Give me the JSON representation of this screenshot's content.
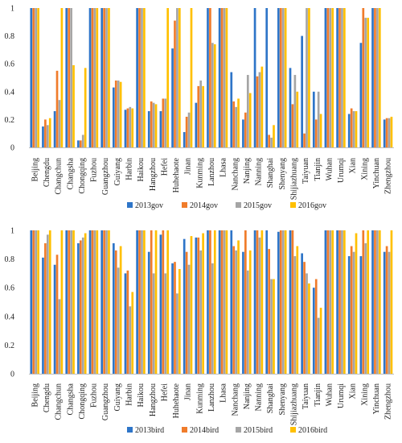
{
  "chart_data": [
    {
      "type": "bar",
      "ylim": [
        0,
        1
      ],
      "yticks": [
        "0",
        "0.2",
        "0.4",
        "0.6",
        "0.8",
        "1"
      ],
      "categories": [
        "Beijing",
        "Chengdu",
        "Changchun",
        "Changsha",
        "Chongqing",
        "Fuzhou",
        "Guangzhou",
        "Guiyang",
        "Harbin",
        "Haikou",
        "Hangzhou",
        "Hefei",
        "Huhehaote",
        "Jinan",
        "Kunming",
        "Lanzhou",
        "Lhasa",
        "Nanchang",
        "Nanjing",
        "Nanning",
        "Shanghai",
        "Shenyang",
        "Shijiazhuang",
        "Taiyuan",
        "Tianjin",
        "Wuhan",
        "Urumqi",
        "Xian",
        "Xining",
        "Yinchuan",
        "Zhengzhou"
      ],
      "series": [
        {
          "name": "2013gov",
          "color": "#2E75C8",
          "values": [
            1,
            0.15,
            0.26,
            1,
            0.05,
            1,
            1,
            0.43,
            0.27,
            1,
            0.26,
            0.26,
            0.71,
            0.11,
            0.32,
            1,
            1,
            0.54,
            0.2,
            1,
            1,
            1,
            0.57,
            0.8,
            0.4,
            1,
            1,
            0.24,
            0.75,
            1,
            0.2
          ]
        },
        {
          "name": "2014gov",
          "color": "#F07C2B",
          "values": [
            1,
            0.2,
            0.55,
            1,
            0.05,
            1,
            1,
            0.48,
            0.28,
            1,
            0.33,
            0.35,
            0.91,
            0.22,
            0.44,
            1,
            1,
            0.33,
            0.25,
            0.51,
            0.09,
            1,
            0.31,
            0.1,
            0.2,
            1,
            1,
            0.28,
            1,
            1,
            0.21
          ]
        },
        {
          "name": "2015gov",
          "color": "#A5A5A5",
          "values": [
            1,
            0.16,
            0.34,
            1,
            0.09,
            1,
            1,
            0.48,
            0.29,
            1,
            0.32,
            0.35,
            1,
            0.25,
            0.48,
            0.75,
            1,
            0.29,
            0.52,
            0.54,
            0.07,
            1,
            0.52,
            1,
            0.4,
            1,
            1,
            0.26,
            0.93,
            1,
            0.21
          ]
        },
        {
          "name": "2016gov",
          "color": "#FFC000",
          "values": [
            1,
            0.21,
            1,
            0.59,
            0.57,
            1,
            1,
            0.47,
            0.28,
            1,
            0.31,
            1,
            1,
            1,
            0.44,
            0.74,
            1,
            0.35,
            0.39,
            0.58,
            0.16,
            1,
            0.4,
            1,
            0.24,
            1,
            1,
            0.26,
            0.93,
            1,
            0.22
          ]
        }
      ]
    },
    {
      "type": "bar",
      "ylim": [
        0,
        1
      ],
      "yticks": [
        "0",
        "0.2",
        "0.4",
        "0.6",
        "0.8",
        "1"
      ],
      "categories": [
        "Beijing",
        "Chengdu",
        "Changchun",
        "Changsha",
        "Chongqing",
        "Fuzhou",
        "Guangzhou",
        "Guiyang",
        "Harbin",
        "Haikou",
        "Hangzhou",
        "Hefei",
        "Huhehaote",
        "Jinan",
        "Kunming",
        "Lanzhou",
        "Lhasa",
        "Nanchang",
        "Nanjing",
        "Nanning",
        "Shanghai",
        "Shenyang",
        "Shijiazhuang",
        "Taiyuan",
        "Tianjin",
        "Wuhan",
        "Urumqi",
        "Xian",
        "Xining",
        "Yinchuan",
        "Zhengzhou"
      ],
      "series": [
        {
          "name": "2013bird",
          "color": "#2E75C8",
          "values": [
            1,
            0.81,
            0.76,
            1,
            0.91,
            1,
            1,
            0.91,
            0.7,
            1,
            0.85,
            0.97,
            0.77,
            0.94,
            0.95,
            1,
            1,
            1,
            0.85,
            1,
            1,
            0.99,
            1,
            0.84,
            0.6,
            1,
            1,
            0.82,
            0.82,
            1,
            0.85
          ]
        },
        {
          "name": "2014bird",
          "color": "#F07C2B",
          "values": [
            1,
            0.91,
            0.83,
            1,
            0.93,
            1,
            1,
            0.86,
            0.72,
            1,
            1,
            1,
            0.78,
            0.85,
            0.95,
            1,
            1,
            0.89,
            1,
            1,
            0.87,
            1,
            1,
            0.78,
            0.66,
            1,
            1,
            0.89,
            1,
            1,
            0.89
          ]
        },
        {
          "name": "2015bird",
          "color": "#A5A5A5",
          "values": [
            1,
            0.97,
            0.52,
            1,
            0.95,
            1,
            1,
            0.74,
            0.47,
            1,
            0.7,
            0.7,
            0.56,
            0.76,
            0.86,
            0.77,
            1,
            0.86,
            0.72,
            0.95,
            0.66,
            1,
            0.82,
            0.7,
            0.39,
            1,
            1,
            0.85,
            0.91,
            1,
            0.85
          ]
        },
        {
          "name": "2016bird",
          "color": "#FFC000",
          "values": [
            1,
            1,
            1,
            1,
            0.98,
            1,
            1,
            0.89,
            0.57,
            1,
            1,
            1,
            0.73,
            0.96,
            0.98,
            1,
            1,
            0.93,
            0.86,
            1,
            0.66,
            1,
            0.89,
            0.63,
            0.46,
            1,
            1,
            0.98,
            1,
            1,
            1
          ]
        }
      ]
    }
  ]
}
